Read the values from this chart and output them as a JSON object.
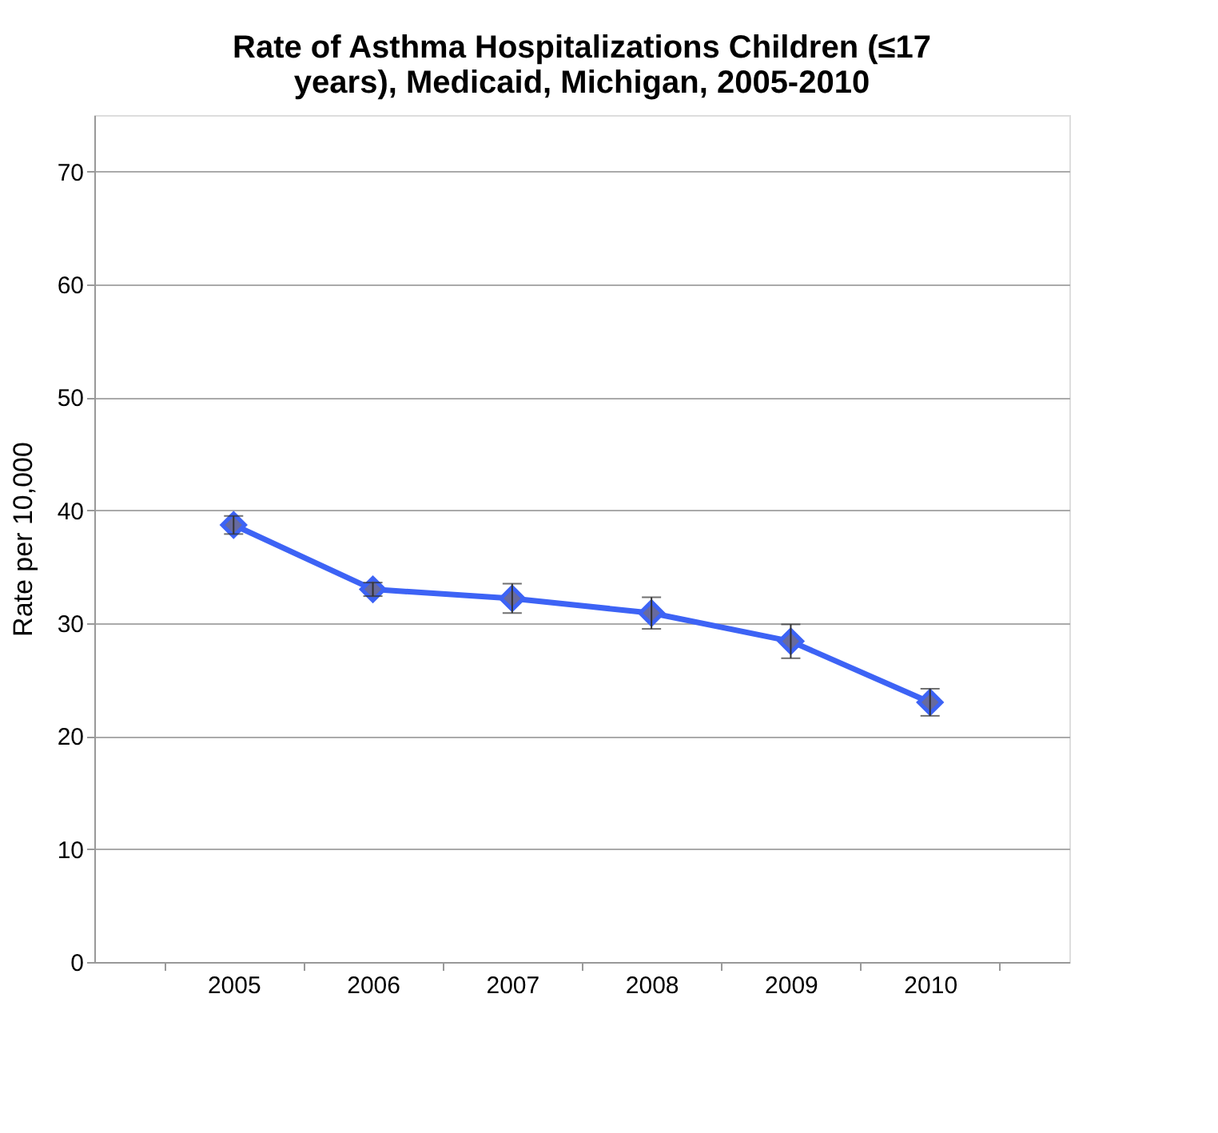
{
  "chart_data": {
    "type": "line",
    "title": "Rate of Asthma Hospitalizations Children (≤17 years), Medicaid, Michigan, 2005-2010",
    "ylabel": "Rate per 10,000",
    "categories": [
      "2005",
      "2006",
      "2007",
      "2008",
      "2009",
      "2010"
    ],
    "series": [
      {
        "color": "#3d63f5",
        "values": [
          38.7,
          33.0,
          32.2,
          30.9,
          28.4,
          23.0
        ],
        "errors": [
          0.8,
          0.6,
          1.3,
          1.4,
          1.5,
          1.2
        ]
      }
    ],
    "ylim": [
      0,
      75
    ],
    "yticks": [
      0,
      10,
      20,
      30,
      40,
      50,
      60,
      70
    ],
    "grid": "y",
    "marker": "diamond"
  }
}
